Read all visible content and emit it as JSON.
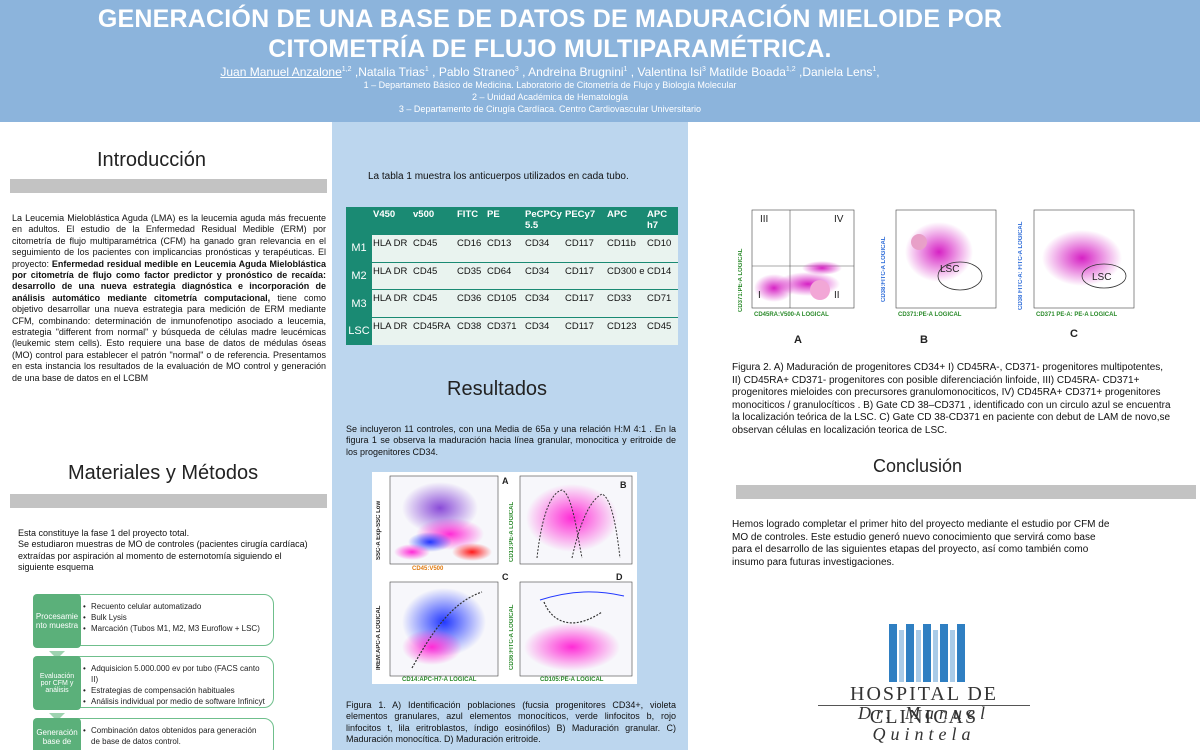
{
  "header": {
    "title_line1": "GENERACIÓN DE UNA BASE DE DATOS DE MADURACIÓN MIELOIDE  POR",
    "title_line2": "CITOMETRÍA DE FLUJO MULTIPARAMÉTRICA.",
    "authors": [
      {
        "name": "Juan Manuel Anzalone",
        "sup": "1,2"
      },
      {
        "name": ",Natalia Trias",
        "sup": "1"
      },
      {
        "name": ", Pablo Straneo",
        "sup": "3"
      },
      {
        "name": ", Andreina Brugnini",
        "sup": "1"
      },
      {
        "name": ", Valentina Isi",
        "sup": "3"
      },
      {
        "name": " Matilde Boada",
        "sup": "1,2"
      },
      {
        "name": " ,Daniela Lens",
        "sup": "1"
      },
      {
        "name": ",",
        "sup": ""
      }
    ],
    "affiliation_1": "1 – Departameto Básico de Medicina. Laboratorio de Citometría de Flujo y Biología Molecular",
    "affiliation_2": "2 – Unidad Académica de Hematología",
    "affiliation_3": "3 – Departamento de Cirugía Cardíaca. Centro Cardiovascular Universitario"
  },
  "introduccion": {
    "heading": "Introducción",
    "text_1": "La Leucemia Mieloblástica Aguda (LMA) es la leucemia aguda más frecuente en adultos. El estudio de la Enfermedad Residual Medible (ERM) por citometría de flujo multiparamétrica (CFM) ha ganado gran relevancia en el seguimiento de los pacientes con implicancias pronósticas y terapéuticas. El proyecto: ",
    "text_bold": "Enfermedad residual medible en Leucemia Aguda Mieloblástica por citometría de flujo como factor predictor y pronóstico de recaída: desarrollo de una nueva estrategia diagnóstica e incorporación de análisis automático mediante citometría computacional,",
    "text_2": " tiene como objetivo desarrollar una nueva estrategia para medición de ERM mediante CFM, combinando: determinación de inmunofenotipo asociado a leucemia, estrategia \"different from normal\" y búsqueda de células madre leucémicas (leukemic stem cells). Esto requiere una base de datos de médulas óseas (MO) control para establecer el patrón \"normal\" o de referencia. Presentamos en esta instancia los resultados de la evaluación de MO control y generación de una base de datos en el LCBM"
  },
  "materiales": {
    "heading": "Materiales y Métodos",
    "text": "Esta constituye la fase 1 del proyecto total.\nSe estudiaron muestras de MO de controles (pacientes cirugía cardíaca) extraídas por aspiración al momento de esternotomía siguiendo el siguiente esquema",
    "steps": [
      {
        "label": "Procesamie nto muestra",
        "items": [
          "Recuento celular automatizado",
          "Bulk Lysis",
          "Marcación (Tubos M1, M2, M3 Euroflow + LSC)"
        ]
      },
      {
        "label": "Evaluación por CFM y análisis",
        "items": [
          "Adquisicion 5.000.000 ev por tubo (FACS canto II)",
          "Estrategias de compensación habituales",
          "Análisis individual por medio de software Infinicyt"
        ]
      },
      {
        "label": "Generación base de",
        "items": [
          "Combinación datos obtenidos para generación de base de datos control."
        ]
      }
    ]
  },
  "tabla": {
    "caption": "La tabla 1 muestra los anticuerpos utilizados en cada tubo.",
    "headers": [
      "",
      "V450",
      "v500",
      "FITC",
      "PE",
      "PeCPCy 5.5",
      "PECy7",
      "APC",
      "APC h7"
    ],
    "rows": [
      [
        "M1",
        "HLA DR",
        "CD45",
        "CD16",
        "CD13",
        "CD34",
        "CD117",
        "CD11b",
        "CD10"
      ],
      [
        "M2",
        "HLA DR",
        "CD45",
        "CD35",
        "CD64",
        "CD34",
        "CD117",
        "CD300 e",
        "CD14"
      ],
      [
        "M3",
        "HLA DR",
        "CD45",
        "CD36",
        "CD105",
        "CD34",
        "CD117",
        "CD33",
        "CD71"
      ],
      [
        "LSC",
        "HLA DR",
        "CD45RA",
        "CD38",
        "CD371",
        "CD34",
        "CD117",
        "CD123",
        "CD45"
      ]
    ]
  },
  "resultados": {
    "heading": "Resultados",
    "text": "Se incluyeron 11 controles,  con una Media de 65a y  una relación H:M  4:1  . En la figura 1 se observa la maduración hacia línea granular, monocitica y eritroide de los progenitores CD34.",
    "fig1_panels": {
      "a": "A",
      "b": "B",
      "c": "C",
      "d": "D"
    },
    "fig1_axes": {
      "a_y": "SSC-A Exp-SSC Low",
      "a_x": "CD45:V500",
      "b_y": "CD13:PE-A LOGICAL",
      "c_y": "IREM:APC-A LOGICAL",
      "c_x": "CD14:APC-H7-A LOGICAL",
      "d_y": "CD36:FITC-A LOGICAL",
      "d_x": "CD105:PE-A LOGICAL"
    },
    "fig1_caption": "Figura 1. A) Identificación poblaciones (fucsia  progenitores CD34+, violeta elementos granulares, azul elementos monocíticos, verde linfocitos b, rojo linfocitos t, lila eritroblastos, índigo eosinófilos) B) Maduración granular. C) Maduración monocítica. D) Maduración eritroide."
  },
  "figura2": {
    "quadrants": [
      "III",
      "IV",
      "I",
      "II"
    ],
    "panels": [
      "A",
      "B",
      "C"
    ],
    "lsc": "LSC",
    "axes": {
      "a_y": "CD371:PE-A LOGICAL",
      "a_x": "CD45RA:V500-A LOGICAL",
      "b_y": "CD38:FITC-A LOGICAL",
      "b_x": "CD371:PE-A LOGICAL",
      "c_y": "CD38 FITC-A: FITC-A LOGICAL",
      "c_x": "CD371  PE-A: PE-A LOGICAL"
    },
    "caption": "Figura 2. A) Maduración de progenitores CD34+ I) CD45RA-, CD371- progenitores multipotentes, II) CD45RA+ CD371- progenitores con posible diferenciación linfoide, III) CD45RA- CD371+ progenitores mieloides con precursores granulomonociticos, IV) CD45RA+ CD371+ progenitores monociticos / granulocíticos . B) Gate CD 38–CD371 , identificado con un circulo azul se encuentra la localización teórica de la LSC. C) Gate CD 38-CD371 en paciente con debut de LAM de novo,se observan células en localización teorica de LSC."
  },
  "conclusion": {
    "heading": "Conclusión",
    "text": "Hemos logrado completar el primer hito del proyecto mediante el estudio por CFM de MO de controles. Este estudio generó nuevo conocimiento que servirá como base para el desarrollo de las siguientes etapas del proyecto, así como también como insumo para futuras investigaciones."
  },
  "logo": {
    "name": "HOSPITAL DE CLINICAS",
    "subtitle": "Dr. Manuel Quintela"
  },
  "colors": {
    "header_bg": "#8cb4dc",
    "middle_column_bg": "#bcd6ee",
    "table_green": "#1a8a73",
    "flow_green": "#5bb07a",
    "logo_blue": "#2f7fc2"
  }
}
